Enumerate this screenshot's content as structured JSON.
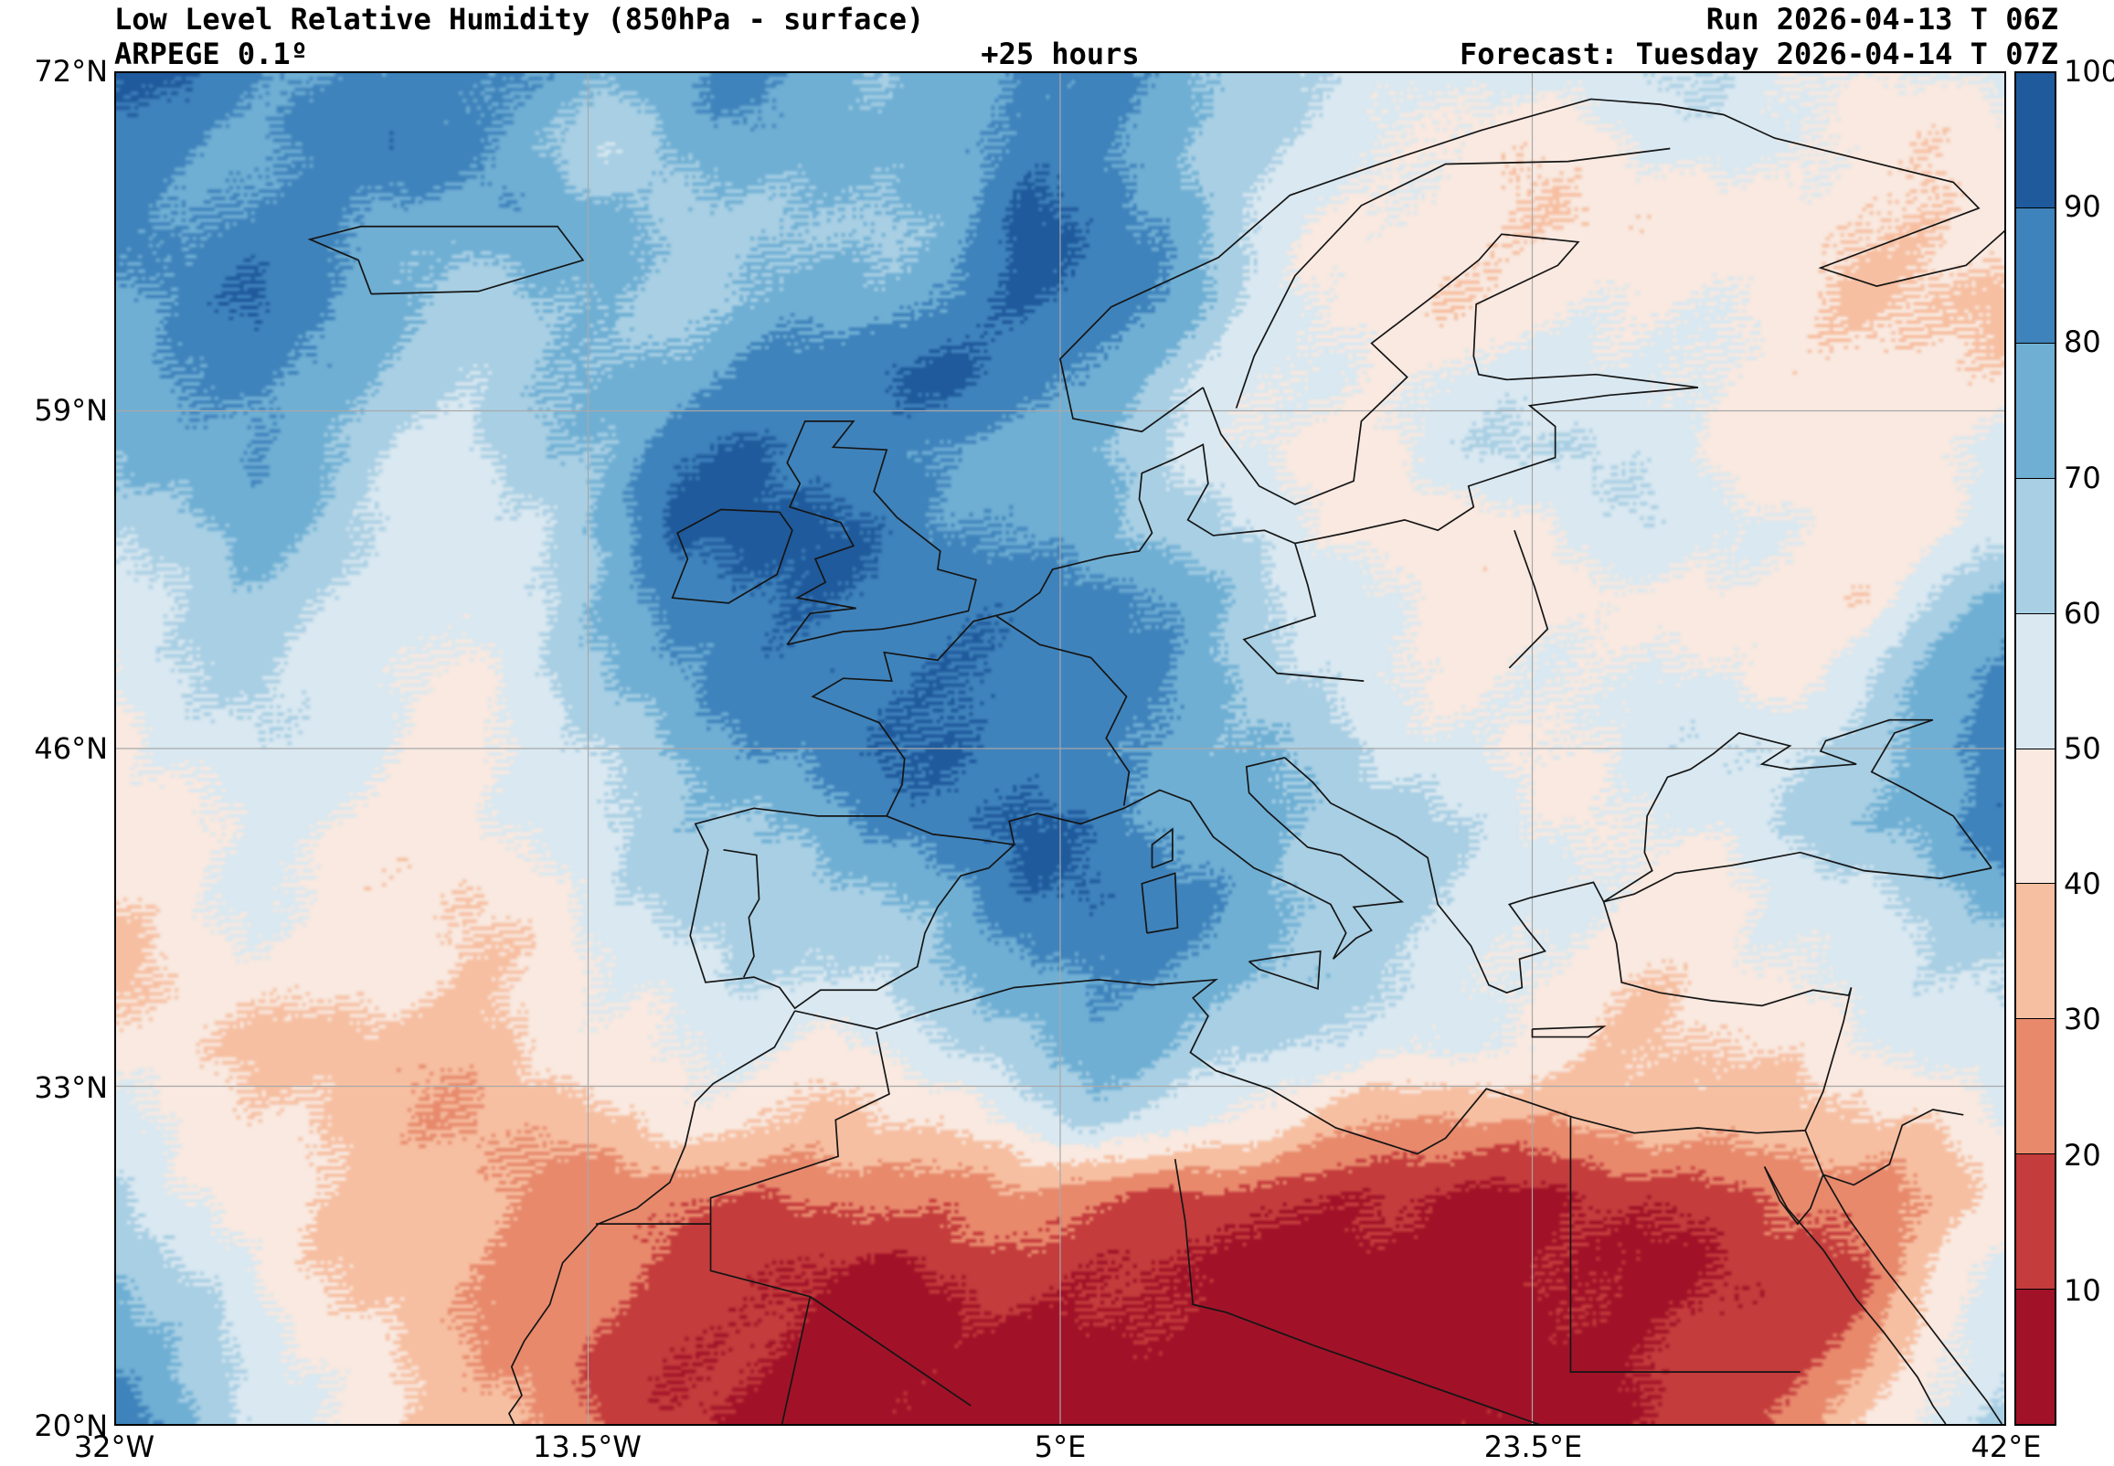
{
  "header": {
    "title": "Low Level Relative Humidity (850hPa - surface)",
    "model": "ARPEGE 0.1º",
    "lead_time": "+25 hours",
    "run": "Run 2026-04-13 T 06Z",
    "forecast": "Forecast: Tuesday 2026-04-14 T 07Z"
  },
  "axes": {
    "lat_ticks": [
      {
        "label": "72°N",
        "value": 72
      },
      {
        "label": "59°N",
        "value": 59
      },
      {
        "label": "46°N",
        "value": 46
      },
      {
        "label": "33°N",
        "value": 33
      },
      {
        "label": "20°N",
        "value": 20
      }
    ],
    "lon_ticks": [
      {
        "label": "32°W",
        "value": -32
      },
      {
        "label": "13.5°W",
        "value": -13.5
      },
      {
        "label": "5°E",
        "value": 5
      },
      {
        "label": "23.5°E",
        "value": 23.5
      },
      {
        "label": "42°E",
        "value": 42
      }
    ]
  },
  "colorbar": {
    "tick_labels": [
      "100",
      "90",
      "80",
      "70",
      "60",
      "50",
      "40",
      "30",
      "20",
      "10"
    ],
    "min": 0,
    "max": 100
  },
  "chart_data": {
    "type": "heatmap",
    "title": "Low Level Relative Humidity (850hPa - surface)",
    "variable": "relative humidity",
    "units": "%",
    "model": "ARPEGE 0.1º",
    "run": "2026-04-13 06Z",
    "forecast_valid": "Tuesday 2026-04-14 07Z",
    "lead_hours": 25,
    "lon_range": [
      -32,
      42
    ],
    "lat_range": [
      20,
      72
    ],
    "levels": [
      0,
      10,
      20,
      30,
      40,
      50,
      60,
      70,
      80,
      90,
      100
    ],
    "colors": [
      "#a11228",
      "#c43c3c",
      "#e8896c",
      "#f7bfa1",
      "#f9e9e0",
      "#d9e8f1",
      "#a8cfe4",
      "#6fafd4",
      "#3f83bc",
      "#1f5a9c"
    ],
    "grid_lines": true,
    "legend_position": "right",
    "grid": {
      "n_lon": 28,
      "n_lat": 19,
      "order": "north_to_south_west_to_east",
      "values": [
        [
          92,
          90,
          82,
          78,
          85,
          88,
          80,
          72,
          78,
          82,
          78,
          72,
          78,
          85,
          82,
          76,
          68,
          62,
          58,
          55,
          52,
          55,
          58,
          60,
          55,
          50,
          52,
          55
        ],
        [
          88,
          85,
          78,
          82,
          90,
          82,
          72,
          65,
          72,
          78,
          75,
          70,
          78,
          88,
          85,
          78,
          62,
          56,
          52,
          48,
          45,
          48,
          52,
          55,
          50,
          46,
          44,
          48
        ],
        [
          85,
          80,
          84,
          88,
          78,
          72,
          80,
          74,
          66,
          72,
          70,
          68,
          76,
          92,
          88,
          82,
          64,
          54,
          48,
          44,
          42,
          40,
          44,
          48,
          45,
          42,
          40,
          42
        ],
        [
          80,
          84,
          90,
          82,
          72,
          66,
          74,
          70,
          64,
          70,
          74,
          78,
          84,
          94,
          90,
          78,
          62,
          52,
          46,
          44,
          46,
          48,
          50,
          50,
          46,
          42,
          40,
          38
        ],
        [
          76,
          82,
          88,
          78,
          66,
          62,
          68,
          74,
          78,
          82,
          86,
          90,
          92,
          88,
          82,
          68,
          56,
          50,
          48,
          52,
          56,
          58,
          54,
          48,
          44,
          42,
          44,
          46
        ],
        [
          70,
          76,
          82,
          72,
          62,
          58,
          66,
          72,
          86,
          94,
          90,
          84,
          80,
          74,
          70,
          62,
          54,
          48,
          50,
          56,
          60,
          62,
          56,
          50,
          46,
          44,
          48,
          54
        ],
        [
          64,
          70,
          76,
          66,
          58,
          55,
          62,
          76,
          92,
          95,
          92,
          88,
          84,
          80,
          76,
          66,
          58,
          52,
          48,
          46,
          50,
          54,
          58,
          55,
          50,
          46,
          50,
          56
        ],
        [
          58,
          64,
          70,
          62,
          55,
          52,
          60,
          72,
          88,
          92,
          90,
          88,
          85,
          85,
          88,
          82,
          70,
          58,
          50,
          45,
          46,
          48,
          52,
          48,
          44,
          42,
          60,
          75
        ],
        [
          52,
          58,
          64,
          58,
          52,
          50,
          58,
          68,
          80,
          86,
          90,
          92,
          90,
          88,
          85,
          80,
          72,
          62,
          55,
          50,
          48,
          50,
          54,
          50,
          48,
          60,
          72,
          85
        ],
        [
          48,
          55,
          60,
          55,
          50,
          48,
          55,
          65,
          72,
          78,
          84,
          90,
          92,
          90,
          84,
          78,
          72,
          66,
          60,
          55,
          50,
          52,
          55,
          58,
          60,
          64,
          80,
          90
        ],
        [
          45,
          50,
          56,
          52,
          48,
          45,
          52,
          60,
          68,
          72,
          76,
          82,
          88,
          92,
          88,
          82,
          76,
          70,
          66,
          60,
          55,
          50,
          52,
          56,
          62,
          68,
          76,
          88
        ],
        [
          42,
          48,
          52,
          48,
          45,
          42,
          48,
          55,
          62,
          68,
          66,
          72,
          80,
          88,
          90,
          84,
          78,
          72,
          68,
          62,
          56,
          50,
          46,
          48,
          55,
          60,
          66,
          72
        ],
        [
          40,
          45,
          48,
          45,
          42,
          40,
          45,
          52,
          58,
          62,
          58,
          62,
          70,
          80,
          86,
          80,
          74,
          68,
          62,
          58,
          52,
          48,
          42,
          44,
          50,
          55,
          60,
          64
        ],
        [
          44,
          42,
          40,
          38,
          36,
          35,
          40,
          48,
          52,
          55,
          50,
          52,
          58,
          68,
          76,
          72,
          66,
          60,
          55,
          52,
          48,
          44,
          40,
          42,
          45,
          48,
          52,
          58
        ],
        [
          54,
          48,
          42,
          38,
          35,
          32,
          34,
          40,
          44,
          42,
          38,
          40,
          46,
          56,
          62,
          56,
          48,
          40,
          34,
          30,
          30,
          32,
          34,
          36,
          38,
          40,
          44,
          50
        ],
        [
          64,
          55,
          46,
          40,
          36,
          32,
          29,
          26,
          24,
          22,
          20,
          22,
          25,
          28,
          25,
          20,
          15,
          12,
          10,
          9,
          10,
          12,
          14,
          17,
          20,
          24,
          34,
          44
        ],
        [
          70,
          60,
          50,
          43,
          38,
          33,
          27,
          21,
          17,
          14,
          11,
          10,
          12,
          14,
          12,
          10,
          8,
          6,
          5,
          5,
          6,
          8,
          10,
          12,
          15,
          20,
          38,
          55
        ],
        [
          80,
          66,
          56,
          46,
          40,
          34,
          27,
          19,
          13,
          9,
          7,
          6,
          8,
          9,
          8,
          6,
          5,
          4,
          4,
          5,
          6,
          8,
          10,
          12,
          17,
          28,
          48,
          60
        ],
        [
          88,
          74,
          62,
          50,
          42,
          35,
          29,
          21,
          14,
          9,
          6,
          5,
          5,
          6,
          5,
          4,
          4,
          4,
          5,
          6,
          8,
          10,
          12,
          15,
          24,
          38,
          55,
          66
        ]
      ]
    }
  }
}
